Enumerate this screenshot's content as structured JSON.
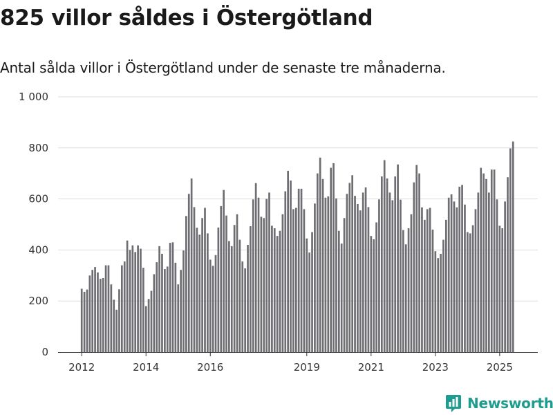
{
  "header": {
    "title": "825 villor såldes i Östergötland",
    "subtitle": "Antal sålda villor i Östergötland under de senaste tre månaderna."
  },
  "brand": {
    "name": "Newsworthy",
    "icon": "newsworthy-logo-icon"
  },
  "colors": {
    "bar": "#6e6d72",
    "highlight": "#1a9e95",
    "grid": "#dddddd",
    "brand": "#1f9c90"
  },
  "chart_data": {
    "type": "bar",
    "title": "825 villor såldes i Östergötland",
    "subtitle": "Antal sålda villor i Östergötland under de senaste tre månaderna.",
    "xlabel": "",
    "ylabel": "",
    "ylim": [
      0,
      1000
    ],
    "yticks": [
      0,
      200,
      400,
      600,
      800,
      1000
    ],
    "ytick_labels": [
      "0",
      "200",
      "400",
      "600",
      "800",
      "1 000"
    ],
    "xticks": [
      {
        "label": "2012",
        "index": 0
      },
      {
        "label": "2014",
        "index": 24
      },
      {
        "label": "2016",
        "index": 48
      },
      {
        "label": "2019",
        "index": 84
      },
      {
        "label": "2021",
        "index": 108
      },
      {
        "label": "2023",
        "index": 132
      },
      {
        "label": "2025",
        "index": 156
      }
    ],
    "grid": true,
    "start": "2012-01",
    "highlight_index": 162,
    "highlight_label": "825",
    "values": [
      248,
      236,
      245,
      300,
      322,
      333,
      312,
      287,
      290,
      340,
      340,
      265,
      205,
      166,
      246,
      340,
      355,
      437,
      400,
      418,
      392,
      418,
      405,
      330,
      180,
      208,
      240,
      305,
      352,
      415,
      385,
      325,
      335,
      428,
      430,
      350,
      265,
      322,
      398,
      533,
      620,
      680,
      568,
      487,
      460,
      525,
      565,
      465,
      362,
      338,
      380,
      488,
      572,
      635,
      535,
      435,
      415,
      498,
      540,
      440,
      355,
      328,
      420,
      493,
      598,
      662,
      605,
      530,
      525,
      600,
      625,
      495,
      485,
      455,
      475,
      540,
      630,
      710,
      672,
      560,
      565,
      640,
      640,
      560,
      445,
      390,
      470,
      582,
      700,
      762,
      678,
      605,
      610,
      722,
      740,
      602,
      475,
      425,
      525,
      620,
      663,
      693,
      612,
      580,
      555,
      625,
      645,
      568,
      455,
      442,
      508,
      598,
      688,
      752,
      680,
      625,
      595,
      688,
      735,
      597,
      478,
      422,
      485,
      540,
      665,
      733,
      700,
      567,
      518,
      560,
      565,
      480,
      395,
      368,
      385,
      440,
      518,
      605,
      618,
      590,
      567,
      648,
      655,
      578,
      470,
      465,
      497,
      560,
      625,
      722,
      700,
      678,
      625,
      715,
      715,
      598,
      495,
      485,
      590,
      685,
      798,
      825
    ]
  }
}
